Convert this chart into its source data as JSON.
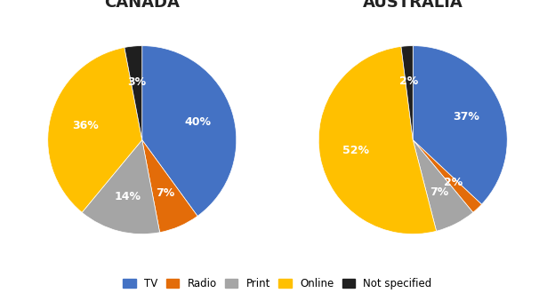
{
  "canada": {
    "title": "CANADA",
    "values": [
      40,
      7,
      14,
      36,
      3
    ],
    "labels": [
      "TV",
      "Radio",
      "Print",
      "Online",
      "Not specified"
    ],
    "colors": [
      "#4472C4",
      "#E36C09",
      "#A5A5A5",
      "#FFC000",
      "#1F1F1F"
    ],
    "startangle": 90,
    "label_texts": [
      "40%",
      "7%",
      "14%",
      "36%",
      "3%"
    ]
  },
  "australia": {
    "title": "AUSTRALIA",
    "values": [
      37,
      2,
      7,
      52,
      2
    ],
    "labels": [
      "TV",
      "Radio",
      "Print",
      "Online",
      "Not specified"
    ],
    "colors": [
      "#4472C4",
      "#E36C09",
      "#A5A5A5",
      "#FFC000",
      "#1F1F1F"
    ],
    "startangle": 90,
    "label_texts": [
      "37%",
      "2%",
      "7%",
      "52%",
      "2%"
    ]
  },
  "legend_labels": [
    "TV",
    "Radio",
    "Print",
    "Online",
    "Not specified"
  ],
  "legend_colors": [
    "#4472C4",
    "#E36C09",
    "#A5A5A5",
    "#FFC000",
    "#1F1F1F"
  ],
  "fig_width": 6.24,
  "fig_height": 3.39,
  "background_color": "#FFFFFF"
}
